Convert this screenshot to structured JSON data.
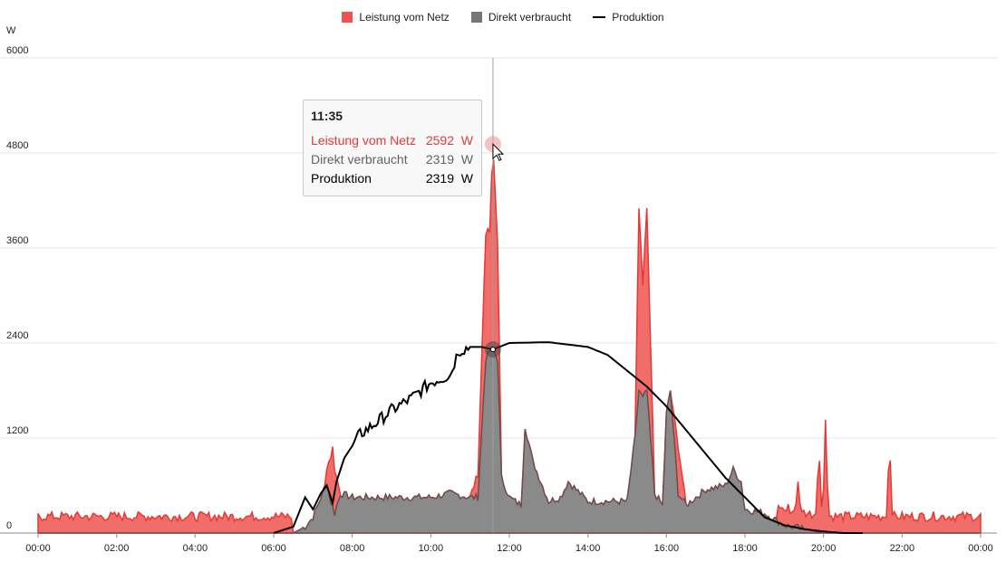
{
  "chart_data": {
    "type": "area",
    "y_unit": "W",
    "ylim": [
      0,
      6000
    ],
    "xlim": [
      "00:00",
      "24:00"
    ],
    "y_ticks": [
      "0",
      "1200",
      "2400",
      "3600",
      "4800",
      "6000"
    ],
    "x_ticks": [
      "00:00",
      "02:00",
      "04:00",
      "06:00",
      "08:00",
      "10:00",
      "12:00",
      "14:00",
      "16:00",
      "18:00",
      "20:00",
      "22:00",
      "00:00"
    ],
    "grid": true,
    "legend_position": "top-center",
    "series": [
      {
        "name": "Leistung vom Netz",
        "color": "#ef5350",
        "style": "area-stacked",
        "x": [
          0,
          0.5,
          1,
          1.5,
          2,
          2.5,
          3,
          3.5,
          4,
          4.5,
          5,
          5.5,
          6,
          6.5,
          7,
          7.3,
          7.5,
          7.7,
          8,
          9,
          10,
          10.5,
          11,
          11.2,
          11.4,
          11.5,
          11.58,
          11.7,
          11.8,
          12,
          12.5,
          13,
          14,
          15,
          15.2,
          15.3,
          15.4,
          15.5,
          15.7,
          15.9,
          16,
          16.1,
          16.3,
          16.5,
          17,
          17.5,
          17.7,
          17.9,
          18,
          18.5,
          19,
          19.5,
          19.7,
          19.8,
          19.9,
          20,
          20.05,
          20.1,
          20.3,
          20.5,
          21,
          21.5,
          21.65,
          21.7,
          21.8,
          22,
          22.5,
          23,
          23.5,
          23.9
        ],
        "values": [
          0,
          0,
          0,
          0,
          0,
          0,
          0,
          0,
          0,
          0,
          0,
          0,
          0,
          0,
          0,
          0,
          750,
          0,
          0,
          0,
          0,
          0,
          0,
          300,
          1600,
          1500,
          2592,
          1500,
          0,
          0,
          0,
          0,
          0,
          0,
          0,
          2300,
          1400,
          2300,
          0,
          0,
          0,
          0,
          600,
          0,
          0,
          0,
          0,
          0,
          0,
          0,
          0,
          0,
          0,
          0,
          0,
          0,
          0,
          0,
          0,
          0,
          0,
          0,
          0,
          0,
          0,
          0,
          0,
          0,
          0,
          0
        ]
      },
      {
        "name": "Direkt verbraucht",
        "color": "#767676",
        "style": "area",
        "x": [
          0,
          6.5,
          6.8,
          7.0,
          7.2,
          7.35,
          7.45,
          7.55,
          7.7,
          8,
          9,
          10,
          10.5,
          11,
          11.2,
          11.4,
          11.5,
          11.58,
          11.7,
          11.8,
          12,
          12.3,
          12.4,
          12.6,
          13,
          13.3,
          13.5,
          14,
          15,
          15.2,
          15.3,
          15.4,
          15.5,
          15.7,
          15.9,
          16,
          16.1,
          16.3,
          16.5,
          17,
          17.5,
          17.7,
          17.9,
          18,
          18.5,
          19,
          19.5,
          20,
          24
        ],
        "values": [
          0,
          0,
          80,
          200,
          450,
          650,
          400,
          250,
          500,
          450,
          450,
          450,
          500,
          450,
          450,
          2200,
          2300,
          2319,
          2200,
          700,
          450,
          350,
          1350,
          900,
          400,
          450,
          650,
          400,
          400,
          1200,
          1800,
          1700,
          1800,
          500,
          350,
          1500,
          1800,
          500,
          350,
          550,
          600,
          800,
          650,
          300,
          250,
          100,
          50,
          0,
          0
        ]
      },
      {
        "name": "Produktion",
        "color": "#000000",
        "style": "line",
        "x": [
          6.0,
          6.5,
          6.8,
          7.0,
          7.2,
          7.35,
          7.5,
          7.6,
          7.8,
          8.0,
          8.2,
          8.5,
          9.0,
          9.5,
          10.0,
          10.5,
          10.7,
          11.0,
          11.3,
          11.58,
          12.0,
          13.0,
          14.0,
          14.5,
          15.0,
          15.5,
          16.0,
          16.5,
          17.0,
          17.5,
          18.0,
          18.5,
          19.0,
          19.5,
          20.0,
          20.5,
          21.0
        ],
        "values": [
          0,
          80,
          450,
          300,
          500,
          600,
          380,
          650,
          950,
          1100,
          1250,
          1350,
          1550,
          1700,
          1900,
          2000,
          2300,
          2350,
          2350,
          2319,
          2400,
          2410,
          2350,
          2250,
          2050,
          1850,
          1600,
          1300,
          1000,
          700,
          450,
          200,
          100,
          50,
          20,
          0,
          0
        ]
      }
    ],
    "tooltip": {
      "time": "11:35",
      "rows": [
        {
          "label": "Leistung vom Netz",
          "value": "2592",
          "unit": "W",
          "color": "#e53935"
        },
        {
          "label": "Direkt verbraucht",
          "value": "2319",
          "unit": "W",
          "color": "#616161"
        },
        {
          "label": "Produktion",
          "value": "2319",
          "unit": "W",
          "color": "#000000"
        }
      ]
    }
  }
}
